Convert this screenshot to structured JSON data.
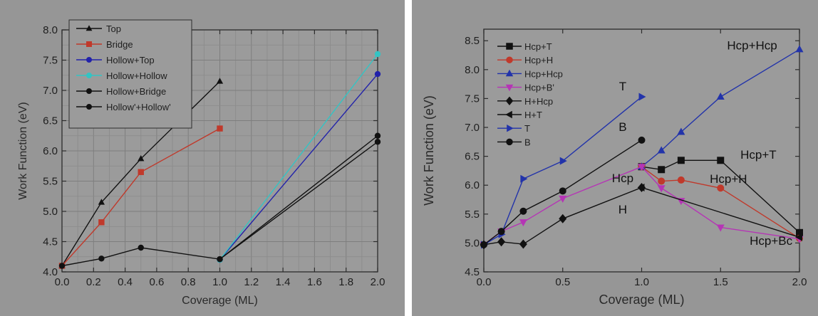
{
  "chart_data": [
    {
      "type": "line",
      "xlabel": "Coverage (ML)",
      "ylabel": "Work Function (eV)",
      "xlim": [
        0,
        2
      ],
      "ylim": [
        4,
        8
      ],
      "xticks": [
        "0.0",
        "0.2",
        "0.4",
        "0.6",
        "0.8",
        "1.0",
        "1.2",
        "1.4",
        "1.6",
        "1.8",
        "2.0"
      ],
      "yticks": [
        "4.0",
        "4.5",
        "5.0",
        "5.5",
        "6.0",
        "6.5",
        "7.0",
        "7.5",
        "8.0"
      ],
      "grid": true,
      "legend_position": "top-left",
      "series": [
        {
          "name": "Top",
          "color": "#111111",
          "marker": "triangle-up",
          "x": [
            0,
            0.25,
            0.5,
            1.0
          ],
          "y": [
            4.1,
            5.15,
            5.87,
            7.15
          ]
        },
        {
          "name": "Bridge",
          "color": "#c0392b",
          "marker": "square",
          "x": [
            0,
            0.25,
            0.5,
            1.0
          ],
          "y": [
            4.1,
            4.82,
            5.65,
            6.37
          ]
        },
        {
          "name": "Hollow+Top",
          "color": "#2222aa",
          "marker": "circle",
          "x": [
            1.0,
            2.0
          ],
          "y": [
            4.2,
            7.27
          ]
        },
        {
          "name": "Hollow+Hollow",
          "color": "#33c4c4",
          "marker": "circle",
          "x": [
            1.0,
            2.0
          ],
          "y": [
            4.2,
            7.6
          ]
        },
        {
          "name": "Hollow+Bridge",
          "color": "#111111",
          "marker": "circle",
          "x": [
            0,
            0.25,
            0.5,
            1.0,
            2.0
          ],
          "y": [
            4.1,
            4.22,
            4.4,
            4.21,
            6.15
          ]
        },
        {
          "name": "Hollow'+Hollow'",
          "color": "#111111",
          "marker": "circle",
          "x": [
            1.0,
            2.0
          ],
          "y": [
            4.21,
            6.25
          ]
        }
      ]
    },
    {
      "type": "line",
      "xlabel": "Coverage (ML)",
      "ylabel": "Work Function (eV)",
      "xlim": [
        0,
        2
      ],
      "ylim": [
        4.5,
        8.7
      ],
      "xticks": [
        "0.0",
        "0.5",
        "1.0",
        "1.5",
        "2.0"
      ],
      "yticks": [
        "4.5",
        "5.0",
        "5.5",
        "6.0",
        "6.5",
        "7.0",
        "7.5",
        "8.0",
        "8.5"
      ],
      "grid": false,
      "legend_position": "top-left",
      "series": [
        {
          "name": "Hcp+T",
          "color": "#111111",
          "marker": "square",
          "x": [
            1.0,
            1.125,
            1.25,
            1.5,
            2.0
          ],
          "y": [
            6.32,
            6.27,
            6.43,
            6.43,
            5.18
          ]
        },
        {
          "name": "Hcp+H",
          "color": "#c0392b",
          "marker": "circle",
          "x": [
            1.0,
            1.125,
            1.25,
            1.5,
            2.0
          ],
          "y": [
            6.32,
            6.07,
            6.09,
            5.95,
            5.08
          ]
        },
        {
          "name": "Hcp+Hcp",
          "color": "#2233aa",
          "marker": "triangle-up",
          "x": [
            1.0,
            1.125,
            1.25,
            1.5,
            2.0
          ],
          "y": [
            6.32,
            6.6,
            6.92,
            7.53,
            8.35
          ]
        },
        {
          "name": "Hcp+B'",
          "color": "#b535b5",
          "marker": "triangle-down",
          "x": [
            0,
            0.111,
            0.25,
            0.5,
            1.0,
            1.125,
            1.25,
            1.5,
            2.0
          ],
          "y": [
            4.97,
            5.2,
            5.36,
            5.77,
            6.32,
            5.95,
            5.73,
            5.27,
            5.07
          ]
        },
        {
          "name": "H+Hcp",
          "color": "#111111",
          "marker": "diamond",
          "x": [
            0,
            0.111,
            0.25,
            0.5,
            1.0
          ],
          "y": [
            4.97,
            5.02,
            4.98,
            5.42,
            5.96
          ]
        },
        {
          "name": "H+T",
          "color": "#111111",
          "marker": "triangle-left",
          "x": [
            1.0,
            2.0
          ],
          "y": [
            5.96,
            5.1
          ]
        },
        {
          "name": "T",
          "color": "#2233aa",
          "marker": "triangle-right",
          "x": [
            0,
            0.111,
            0.25,
            0.5,
            1.0
          ],
          "y": [
            4.97,
            5.15,
            6.11,
            6.42,
            7.53
          ]
        },
        {
          "name": "B",
          "color": "#111111",
          "marker": "circle",
          "x": [
            0,
            0.111,
            0.25,
            0.5,
            1.0
          ],
          "y": [
            4.97,
            5.2,
            5.55,
            5.9,
            6.78
          ]
        }
      ],
      "annotations": [
        "Hcp+Hcp",
        "T",
        "B",
        "Hcp",
        "Hcp+H",
        "Hcp+T",
        "H",
        "Hcp+Bc"
      ]
    }
  ]
}
